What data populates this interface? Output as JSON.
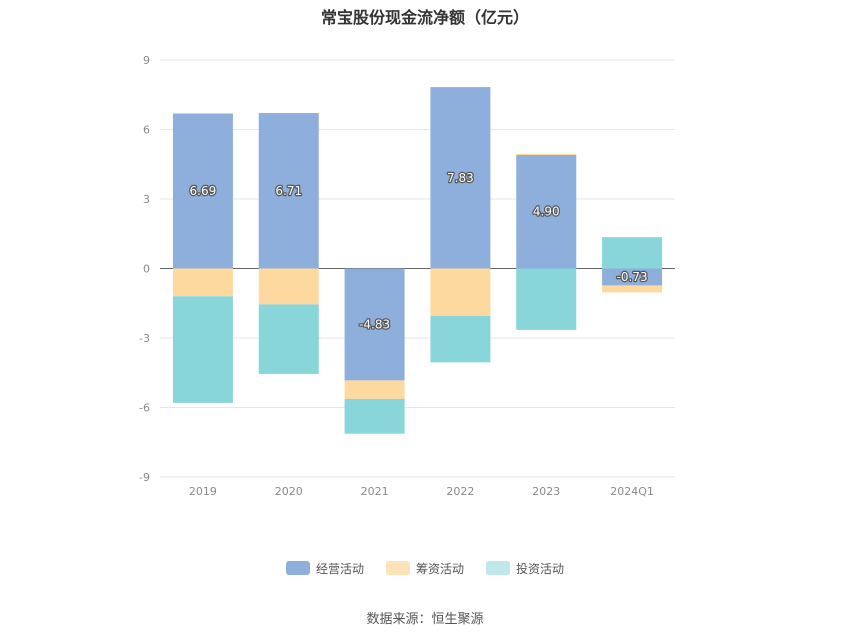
{
  "title": "常宝股份现金流净额（亿元）",
  "source": "数据来源：恒生聚源",
  "colors": {
    "operating": "#8eaedb",
    "financing": "#fdd99f",
    "investing": "#88d6da",
    "grid": "#e6e6e6",
    "zero_line": "#666666"
  },
  "legend": [
    {
      "label": "经营活动",
      "color": "#8eaedb"
    },
    {
      "label": "筹资活动",
      "color": "#fde3b8"
    },
    {
      "label": "投资活动",
      "color": "#bfe8ea"
    }
  ],
  "chart_data": {
    "type": "bar",
    "stacked": true,
    "title": "常宝股份现金流净额（亿元）",
    "categories": [
      "2019",
      "2020",
      "2021",
      "2022",
      "2023",
      "2024Q1"
    ],
    "ylim": [
      -9,
      9
    ],
    "yticks": [
      9,
      6,
      3,
      0,
      -3,
      -6,
      -9
    ],
    "grid": true,
    "legend_position": "bottom",
    "series": [
      {
        "name": "经营活动",
        "values": [
          6.69,
          6.71,
          -4.83,
          7.83,
          4.9,
          -0.73
        ],
        "labels": [
          "6.69",
          "6.71",
          "-4.83",
          "7.83",
          "4.90",
          "-0.73"
        ]
      },
      {
        "name": "筹资活动",
        "values": [
          -1.2,
          -1.55,
          -0.8,
          -2.05,
          0.05,
          -0.3
        ]
      },
      {
        "name": "投资活动",
        "values": [
          -4.6,
          -3.0,
          -1.5,
          -2.0,
          -2.65,
          1.35
        ]
      }
    ]
  }
}
